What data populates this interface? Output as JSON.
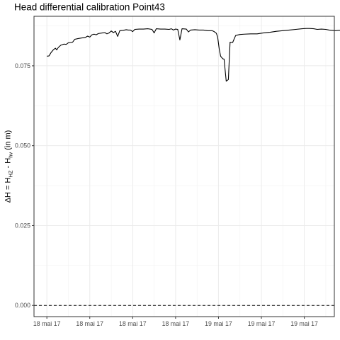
{
  "chart_data": {
    "type": "line",
    "title": "Head differential calibration Point43",
    "ylabel": {
      "prefix": "ΔH = H",
      "sub1": "HZ",
      "middle": " - H",
      "sub2": "hv",
      "suffix": " (in m)"
    },
    "xlabel": "",
    "xlim": [
      -0.3,
      6.7
    ],
    "ylim": [
      -0.0035,
      0.0905
    ],
    "x_tick_labels": [
      "18 mai 17",
      "18 mai 17",
      "18 mai 17",
      "18 mai 17",
      "19 mai 17",
      "19 mai 17",
      "19 mai 17"
    ],
    "y_ticks": [
      0.0,
      0.025,
      0.05,
      0.075
    ],
    "y_tick_labels": [
      "0.000",
      "0.025",
      "0.050",
      "0.075"
    ],
    "grid": true,
    "reference_line": {
      "y": 0.0,
      "style": "dashed"
    },
    "series": [
      {
        "color": "#000000",
        "points": [
          [
            0.0,
            0.078
          ],
          [
            0.05,
            0.0781
          ],
          [
            0.1,
            0.0792
          ],
          [
            0.15,
            0.08
          ],
          [
            0.2,
            0.0805
          ],
          [
            0.23,
            0.08
          ],
          [
            0.27,
            0.0808
          ],
          [
            0.33,
            0.0815
          ],
          [
            0.4,
            0.0818
          ],
          [
            0.45,
            0.0817
          ],
          [
            0.5,
            0.0822
          ],
          [
            0.55,
            0.0823
          ],
          [
            0.6,
            0.0824
          ],
          [
            0.65,
            0.0833
          ],
          [
            0.72,
            0.0835
          ],
          [
            0.8,
            0.0837
          ],
          [
            0.9,
            0.0839
          ],
          [
            0.95,
            0.0843
          ],
          [
            1.0,
            0.084
          ],
          [
            1.05,
            0.0847
          ],
          [
            1.1,
            0.0849
          ],
          [
            1.15,
            0.0847
          ],
          [
            1.2,
            0.0851
          ],
          [
            1.3,
            0.0853
          ],
          [
            1.35,
            0.0854
          ],
          [
            1.4,
            0.085
          ],
          [
            1.45,
            0.0853
          ],
          [
            1.5,
            0.0859
          ],
          [
            1.55,
            0.0854
          ],
          [
            1.6,
            0.0858
          ],
          [
            1.65,
            0.0842
          ],
          [
            1.7,
            0.086
          ],
          [
            1.78,
            0.0861
          ],
          [
            1.85,
            0.0863
          ],
          [
            1.9,
            0.0862
          ],
          [
            1.95,
            0.0862
          ],
          [
            2.0,
            0.0857
          ],
          [
            2.05,
            0.0864
          ],
          [
            2.15,
            0.0865
          ],
          [
            2.25,
            0.0865
          ],
          [
            2.35,
            0.0866
          ],
          [
            2.45,
            0.0864
          ],
          [
            2.5,
            0.0853
          ],
          [
            2.55,
            0.0866
          ],
          [
            2.65,
            0.0865
          ],
          [
            2.75,
            0.0865
          ],
          [
            2.85,
            0.0864
          ],
          [
            2.9,
            0.0866
          ],
          [
            2.95,
            0.0862
          ],
          [
            3.0,
            0.0865
          ],
          [
            3.05,
            0.0864
          ],
          [
            3.1,
            0.0831
          ],
          [
            3.15,
            0.0866
          ],
          [
            3.25,
            0.0865
          ],
          [
            3.3,
            0.0856
          ],
          [
            3.35,
            0.0862
          ],
          [
            3.45,
            0.0863
          ],
          [
            3.55,
            0.0862
          ],
          [
            3.65,
            0.0862
          ],
          [
            3.75,
            0.086
          ],
          [
            3.85,
            0.086
          ],
          [
            3.9,
            0.0857
          ],
          [
            3.95,
            0.0852
          ],
          [
            3.98,
            0.084
          ],
          [
            4.02,
            0.08
          ],
          [
            4.05,
            0.078
          ],
          [
            4.1,
            0.0772
          ],
          [
            4.13,
            0.0771
          ],
          [
            4.18,
            0.0702
          ],
          [
            4.23,
            0.0707
          ],
          [
            4.27,
            0.0824
          ],
          [
            4.33,
            0.0823
          ],
          [
            4.4,
            0.0845
          ],
          [
            4.5,
            0.0848
          ],
          [
            4.6,
            0.0849
          ],
          [
            4.75,
            0.085
          ],
          [
            4.9,
            0.085
          ],
          [
            5.05,
            0.0853
          ],
          [
            5.2,
            0.0855
          ],
          [
            5.35,
            0.0858
          ],
          [
            5.5,
            0.086
          ],
          [
            5.65,
            0.0862
          ],
          [
            5.8,
            0.0864
          ],
          [
            5.95,
            0.0866
          ],
          [
            6.05,
            0.0867
          ],
          [
            6.12,
            0.0867
          ],
          [
            6.22,
            0.0866
          ],
          [
            6.3,
            0.0864
          ],
          [
            6.4,
            0.0865
          ],
          [
            6.5,
            0.0864
          ],
          [
            6.58,
            0.0862
          ],
          [
            6.65,
            0.0861
          ],
          [
            6.72,
            0.086
          ],
          [
            6.8,
            0.0861
          ],
          [
            6.85,
            0.0861
          ]
        ]
      }
    ]
  }
}
